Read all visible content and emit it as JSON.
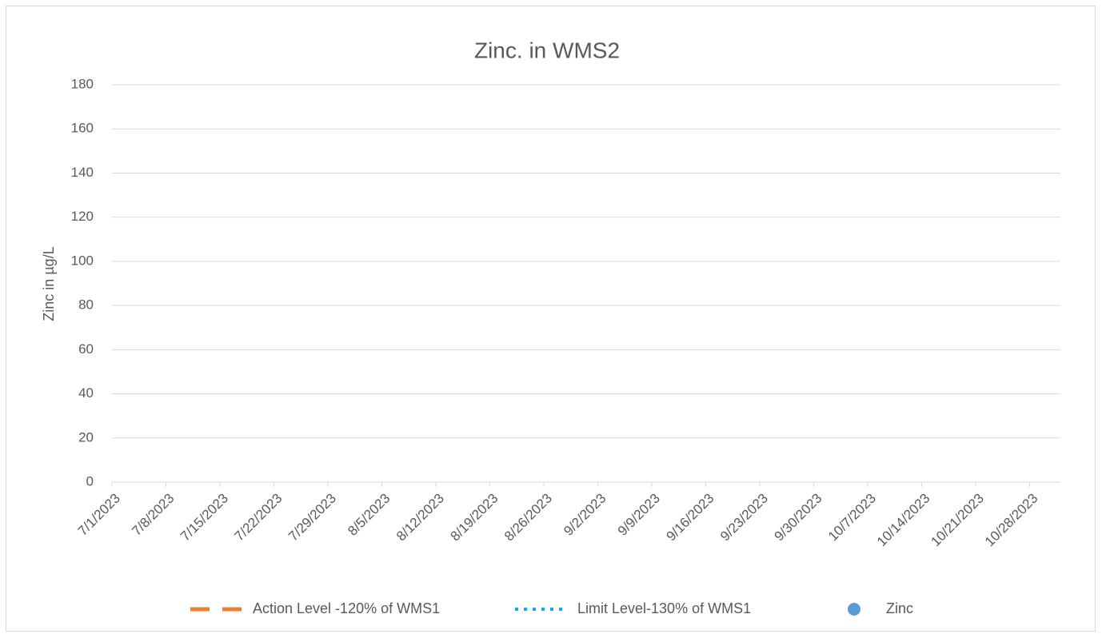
{
  "chart_data": {
    "type": "line",
    "title": "Zinc. in WMS2",
    "y_label": "Zinc in µg/L",
    "categories": [
      "7/1/2023",
      "7/8/2023",
      "7/15/2023",
      "7/22/2023",
      "7/29/2023",
      "8/5/2023",
      "8/12/2023",
      "8/19/2023",
      "8/26/2023",
      "9/2/2023",
      "9/9/2023",
      "9/16/2023",
      "9/23/2023",
      "9/30/2023",
      "10/7/2023",
      "10/14/2023",
      "10/21/2023",
      "10/28/2023"
    ],
    "series": [
      {
        "name": "Action Level -120% of WMS1",
        "color": "#ed7d31",
        "style": "dashed"
      },
      {
        "name": "Limit Level-130% of WMS1",
        "color": "#00b0f0",
        "style": "dotted"
      },
      {
        "name": "Zinc",
        "color": "#5b9bd5",
        "style": "marker"
      }
    ],
    "ylim": [
      0,
      180
    ],
    "yticks": [
      0,
      20,
      40,
      60,
      80,
      100,
      120,
      140,
      160,
      180
    ],
    "grid": true,
    "legend": "bottom"
  }
}
